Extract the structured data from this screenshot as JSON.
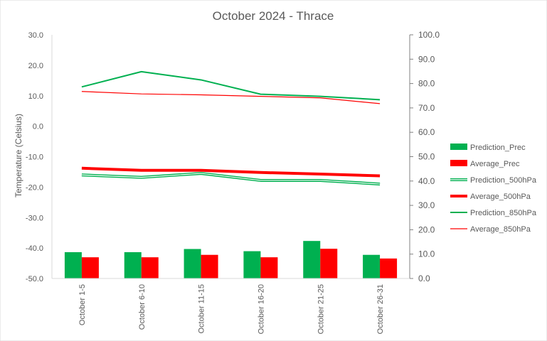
{
  "chart_data": {
    "type": "bar",
    "title": "October 2024 - Thrace",
    "categories": [
      "October 1-5",
      "October 6-10",
      "October 11-15",
      "October 16-20",
      "October 21-25",
      "October 26-31"
    ],
    "ylabel": "Temperature  (Celsius)",
    "y_left": {
      "range": [
        -50,
        30
      ],
      "ticks": [
        "30.0",
        "20.0",
        "10.0",
        "0.0",
        "-10.0",
        "-20.0",
        "-30.0",
        "-40.0",
        "-50.0"
      ]
    },
    "y_right": {
      "range": [
        0,
        100
      ],
      "ticks": [
        "100.0",
        "90.0",
        "80.0",
        "70.0",
        "60.0",
        "50.0",
        "40.0",
        "30.0",
        "20.0",
        "10.0",
        "0.0"
      ]
    },
    "grid": false,
    "legend_position": "right",
    "bar_series": [
      {
        "name": "Prediction_Prec",
        "color": "#00b050",
        "axis": "right",
        "values": [
          10.8,
          10.8,
          12.1,
          11.2,
          15.4,
          9.7
        ]
      },
      {
        "name": "Average_Prec",
        "color": "#ff0000",
        "axis": "right",
        "values": [
          8.7,
          8.7,
          9.7,
          8.7,
          12.2,
          8.2
        ]
      }
    ],
    "line_series": [
      {
        "name": "Prediction_500hPa",
        "color": "#00b050",
        "style": "double",
        "axis": "left",
        "values": [
          -16.0,
          -16.8,
          -15.5,
          -17.8,
          -17.8,
          -19.0
        ]
      },
      {
        "name": "Average_500hPa",
        "color": "#ff0000",
        "style": "thick",
        "axis": "left",
        "values": [
          -13.8,
          -14.5,
          -14.5,
          -15.2,
          -15.7,
          -16.3
        ]
      },
      {
        "name": "Prediction_850hPa",
        "color": "#00b050",
        "style": "normal",
        "axis": "left",
        "values": [
          12.9,
          17.9,
          15.2,
          10.5,
          9.8,
          8.7
        ]
      },
      {
        "name": "Average_850hPa",
        "color": "#ff0000",
        "style": "thin",
        "axis": "left",
        "values": [
          11.4,
          10.6,
          10.3,
          9.8,
          9.3,
          7.4
        ]
      }
    ]
  }
}
